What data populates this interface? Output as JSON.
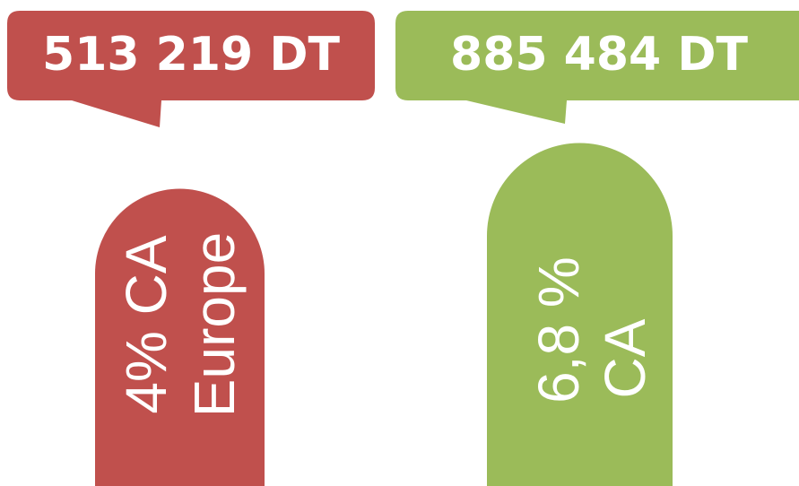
{
  "items": [
    {
      "amount": "513 219 DT",
      "label_lines": [
        "4% CA",
        "Europe"
      ],
      "color": "#c0504d"
    },
    {
      "amount": "885 484 DT",
      "label_lines": [
        "6,8 %",
        "CA"
      ],
      "color": "#9bbb59"
    }
  ]
}
